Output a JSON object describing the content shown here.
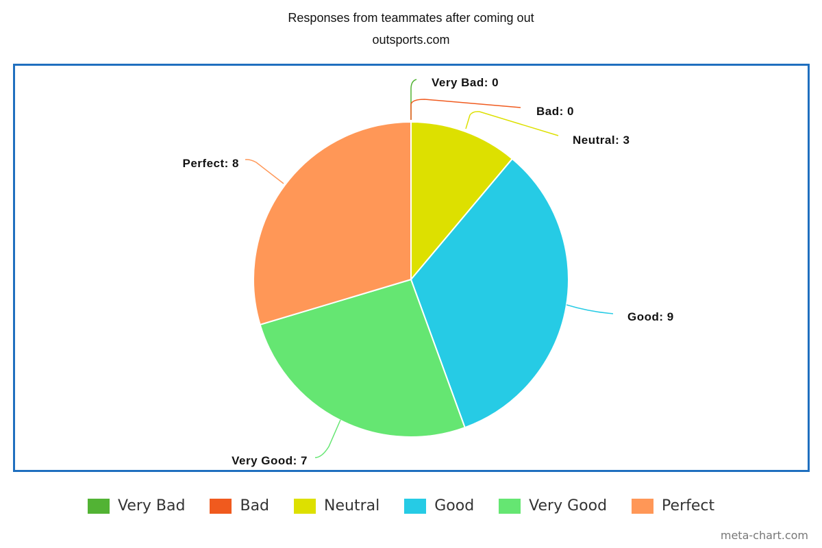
{
  "chart_data": {
    "type": "pie",
    "title": "Responses from teammates after coming out",
    "subtitle": "outsports.com",
    "categories": [
      "Very Bad",
      "Bad",
      "Neutral",
      "Good",
      "Very Good",
      "Perfect"
    ],
    "values": [
      0,
      0,
      3,
      9,
      7,
      8
    ],
    "colors": [
      "#52b334",
      "#f05a1e",
      "#dde000",
      "#26cbe5",
      "#65e672",
      "#ff9757"
    ],
    "data_labels": [
      "Very Bad: 0",
      "Bad: 0",
      "Neutral: 3",
      "Good: 9",
      "Very Good: 7",
      "Perfect: 8"
    ],
    "legend_position": "bottom"
  },
  "credit": "meta-chart.com"
}
